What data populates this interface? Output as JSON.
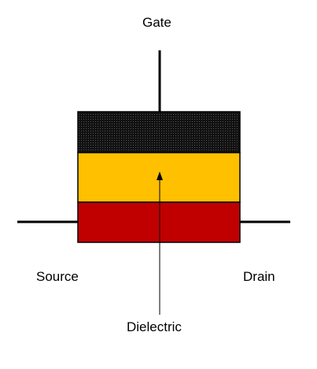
{
  "labels": {
    "gate": "Gate",
    "source": "Source",
    "drain": "Drain",
    "dielectric": "Dielectric"
  },
  "colors": {
    "gate_layer": "#1a1a1a",
    "dielectric_layer": "#ffc000",
    "channel_layer": "#c00000",
    "wire": "#000000"
  }
}
